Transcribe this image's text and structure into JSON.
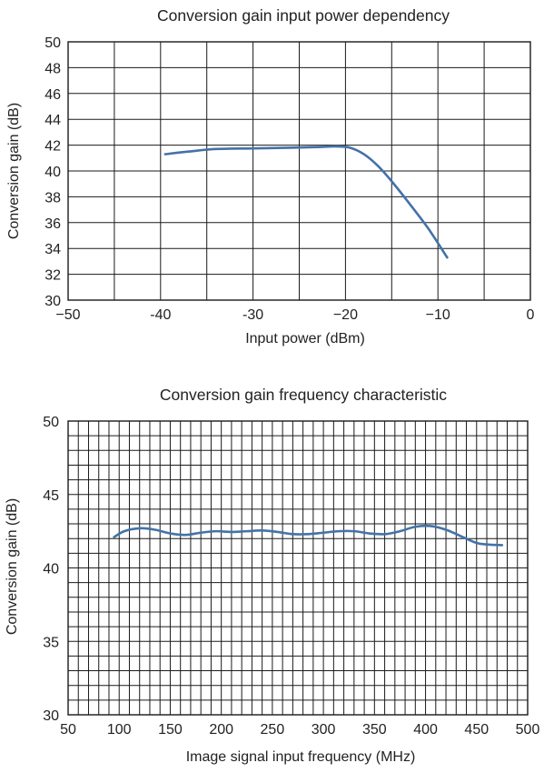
{
  "chart_data": [
    {
      "type": "line",
      "title": "Conversion gain input power dependency",
      "xlabel": "Input power (dBm)",
      "ylabel": "Conversion gain (dB)",
      "xlim": [
        -50,
        0
      ],
      "ylim": [
        30,
        50
      ],
      "xticks": [
        -50,
        -40,
        -30,
        -20,
        -10,
        0
      ],
      "xtick_labels": [
        "−50",
        "-40",
        "-30",
        "−20",
        "−10",
        "0"
      ],
      "yticks": [
        30,
        32,
        34,
        36,
        38,
        40,
        42,
        44,
        46,
        48,
        50
      ],
      "ytick_labels": [
        "30",
        "32",
        "34",
        "36",
        "38",
        "40",
        "42",
        "44",
        "46",
        "48",
        "50"
      ],
      "grid": true,
      "series_color": "#4472a8",
      "series": [
        {
          "x": [
            -39.5,
            -37,
            -34,
            -30,
            -26,
            -23,
            -21,
            -19.5,
            -18,
            -16.5,
            -15,
            -13,
            -11,
            -9
          ],
          "y": [
            41.3,
            41.5,
            41.7,
            41.75,
            41.8,
            41.85,
            41.9,
            41.8,
            41.3,
            40.4,
            39.2,
            37.4,
            35.5,
            33.3
          ]
        }
      ]
    },
    {
      "type": "line",
      "title": "Conversion gain frequency characteristic",
      "xlabel": "Image signal input frequency (MHz)",
      "ylabel": "Conversion gain (dB)",
      "xlim": [
        50,
        500
      ],
      "ylim": [
        30,
        50
      ],
      "xticks": [
        50,
        100,
        150,
        200,
        250,
        300,
        350,
        400,
        450,
        500
      ],
      "xtick_labels": [
        "50",
        "100",
        "150",
        "200",
        "250",
        "300",
        "350",
        "400",
        "450",
        "500"
      ],
      "yticks": [
        30,
        35,
        40,
        45,
        50
      ],
      "ytick_labels": [
        "30",
        "35",
        "40",
        "45",
        "50"
      ],
      "grid": true,
      "series_color": "#4472a8",
      "series": [
        {
          "x": [
            95,
            105,
            120,
            135,
            150,
            165,
            180,
            195,
            210,
            225,
            240,
            255,
            270,
            285,
            300,
            315,
            330,
            345,
            360,
            375,
            390,
            405,
            420,
            435,
            450,
            460,
            475
          ],
          "y": [
            42.1,
            42.5,
            42.7,
            42.6,
            42.35,
            42.25,
            42.4,
            42.5,
            42.45,
            42.5,
            42.55,
            42.45,
            42.3,
            42.3,
            42.4,
            42.5,
            42.5,
            42.35,
            42.3,
            42.5,
            42.8,
            42.85,
            42.6,
            42.15,
            41.7,
            41.6,
            41.55
          ]
        }
      ]
    }
  ]
}
